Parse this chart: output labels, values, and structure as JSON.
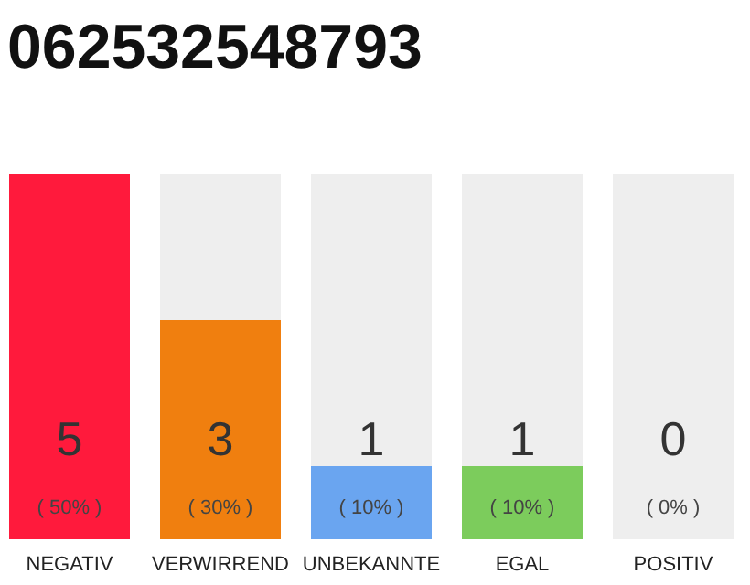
{
  "chart_data": {
    "type": "bar",
    "title": "062532548793",
    "categories": [
      "NEGATIV",
      "VERWIRREND",
      "UNBEKANNTE",
      "EGAL",
      "POSITIV"
    ],
    "stacked": true,
    "series": [
      {
        "colors": [
          "#ff1a3c",
          "#f07f0f",
          "#6aa5f0",
          "#7ccc5c",
          "#cccccc"
        ],
        "values": [
          5,
          3,
          1,
          1,
          0
        ],
        "value_labels": [
          "5",
          "3",
          "1",
          "1",
          null
        ]
      },
      {
        "color": "#eeeeee",
        "values": [
          0,
          2,
          4,
          4,
          5
        ]
      }
    ],
    "ylim": [
      0,
      5
    ],
    "annotations": [
      "( 50% )",
      "( 30% )",
      "( 10% )",
      "( 10% )",
      "( 0% )",
      "0"
    ]
  }
}
